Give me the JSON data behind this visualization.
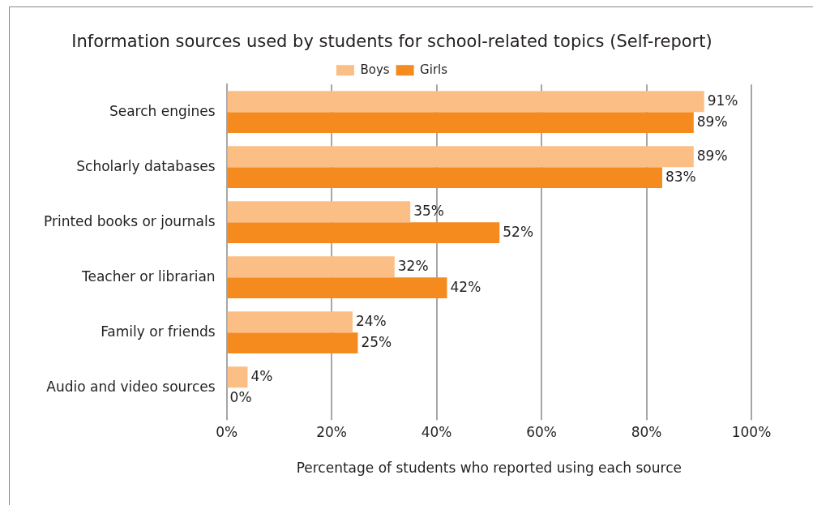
{
  "chart_data": {
    "type": "bar",
    "orientation": "horizontal",
    "title": "Information sources used by students for school-related topics (Self-report)",
    "xlabel": "Percentage of students who reported using each source",
    "categories": [
      "Search engines",
      "Scholarly databases",
      "Printed books or journals",
      "Teacher or librarian",
      "Family or friends",
      "Audio and video sources"
    ],
    "series": [
      {
        "name": "Boys",
        "color": "#fbbf85",
        "values": [
          91,
          89,
          35,
          32,
          24,
          4
        ],
        "value_labels": [
          "91%",
          "89%",
          "35%",
          "32%",
          "24%",
          "4%"
        ]
      },
      {
        "name": "Girls",
        "color": "#f58a1f",
        "values": [
          89,
          83,
          52,
          42,
          25,
          0
        ],
        "value_labels": [
          "89%",
          "83%",
          "52%",
          "42%",
          "25%",
          "0%"
        ]
      }
    ],
    "xlim": [
      0,
      100
    ],
    "xticks": [
      {
        "value": 0,
        "label": "0%"
      },
      {
        "value": 20,
        "label": "20%"
      },
      {
        "value": 40,
        "label": "40%"
      },
      {
        "value": 60,
        "label": "60%"
      },
      {
        "value": 80,
        "label": "80%"
      },
      {
        "value": 100,
        "label": "100%"
      }
    ],
    "grid": "x",
    "legend": "top"
  }
}
